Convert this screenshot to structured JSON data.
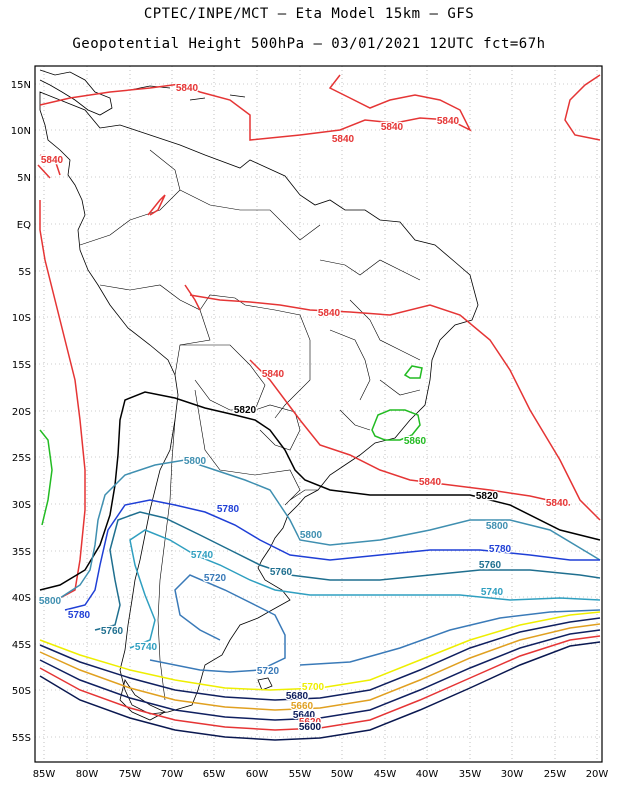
{
  "title_line1": "CPTEC/INPE/MCT –  Eta Model 15km – GFS",
  "title_line2": "Geopotential Height 500hPa – 03/01/2021 12UTC fct=67h",
  "lat_ticks": [
    "15N",
    "10N",
    "5N",
    "EQ",
    "5S",
    "10S",
    "15S",
    "20S",
    "25S",
    "30S",
    "35S",
    "40S",
    "45S",
    "50S",
    "55S"
  ],
  "lon_ticks": [
    "85W",
    "80W",
    "75W",
    "70W",
    "65W",
    "60W",
    "55W",
    "50W",
    "45W",
    "40W",
    "35W",
    "30W",
    "25W",
    "20W"
  ],
  "colors": {
    "c5700": "#9b1a1a",
    "c5720": "#3a7ab8",
    "c5740": "#2f9fc0",
    "c5760": "#1f6f8f",
    "c5780": "#1f3fd6",
    "c5800": "#3f8fb0",
    "c5820": "#000000",
    "c5840": "#e53535",
    "c5860": "#22bb22",
    "yellow": "#eeee00",
    "orange": "#e0a020",
    "navy": "#102060",
    "red": "#e53535",
    "darkblue": "#0a1850"
  },
  "contour_labels": [
    {
      "text": "5840",
      "color": "c5840"
    },
    {
      "text": "5840",
      "color": "c5840"
    },
    {
      "text": "5840",
      "color": "c5840"
    },
    {
      "text": "5840",
      "color": "c5840"
    },
    {
      "text": "5840",
      "color": "c5840"
    },
    {
      "text": "5840",
      "color": "c5840"
    },
    {
      "text": "5840",
      "color": "c5840"
    },
    {
      "text": "5840",
      "color": "c5840"
    },
    {
      "text": "5840",
      "color": "c5840"
    },
    {
      "text": "5820",
      "color": "c5820"
    },
    {
      "text": "5820",
      "color": "c5820"
    },
    {
      "text": "5860",
      "color": "c5860"
    },
    {
      "text": "5800",
      "color": "c5800"
    },
    {
      "text": "5800",
      "color": "c5800"
    },
    {
      "text": "5800",
      "color": "c5800"
    },
    {
      "text": "5800",
      "color": "c5800"
    },
    {
      "text": "5780",
      "color": "c5780"
    },
    {
      "text": "5780",
      "color": "c5780"
    },
    {
      "text": "5780",
      "color": "c5780"
    },
    {
      "text": "5760",
      "color": "c5760"
    },
    {
      "text": "5760",
      "color": "c5760"
    },
    {
      "text": "5760",
      "color": "c5760"
    },
    {
      "text": "5740",
      "color": "c5740"
    },
    {
      "text": "5740",
      "color": "c5740"
    },
    {
      "text": "5740",
      "color": "c5740"
    },
    {
      "text": "5720",
      "color": "c5720"
    },
    {
      "text": "5720",
      "color": "c5720"
    },
    {
      "text": "5700",
      "color": "yellow"
    },
    {
      "text": "5680",
      "color": "navy"
    },
    {
      "text": "5660",
      "color": "orange"
    },
    {
      "text": "5640",
      "color": "navy"
    },
    {
      "text": "5620",
      "color": "red"
    },
    {
      "text": "5600",
      "color": "darkblue"
    }
  ]
}
